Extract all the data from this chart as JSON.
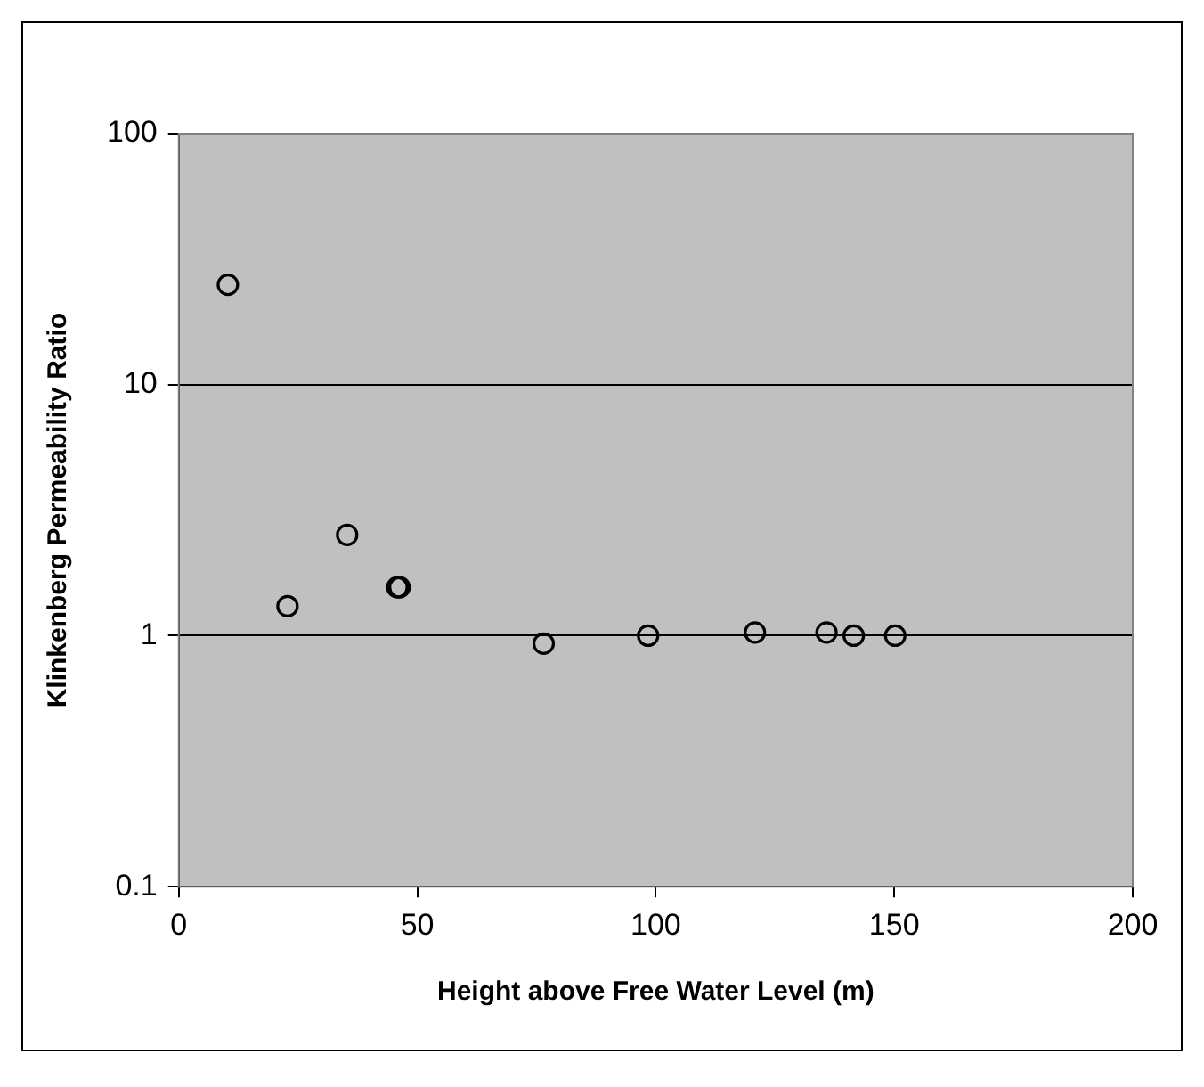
{
  "chart_data": {
    "type": "scatter",
    "xlabel": "Height above Free Water Level (m)",
    "ylabel": "Klinkenberg Permeability Ratio",
    "x": [
      10.3,
      22.8,
      35.3,
      45.8,
      46.3,
      76.5,
      98.4,
      120.8,
      135.8,
      141.5,
      150.2
    ],
    "series": [
      {
        "color": "#000000",
        "values": [
          25,
          1.31,
          2.52,
          1.56,
          1.56,
          0.93,
          1.0,
          1.03,
          1.03,
          1.0,
          1.0
        ]
      }
    ],
    "xlim": [
      0,
      200
    ],
    "xticks": [
      0,
      50,
      100,
      150,
      200
    ],
    "ylim": [
      0.1,
      100
    ],
    "yticks": [
      0.1,
      1,
      10,
      100
    ],
    "log": "y",
    "grid": "y",
    "marker": "circle",
    "legend": false
  }
}
